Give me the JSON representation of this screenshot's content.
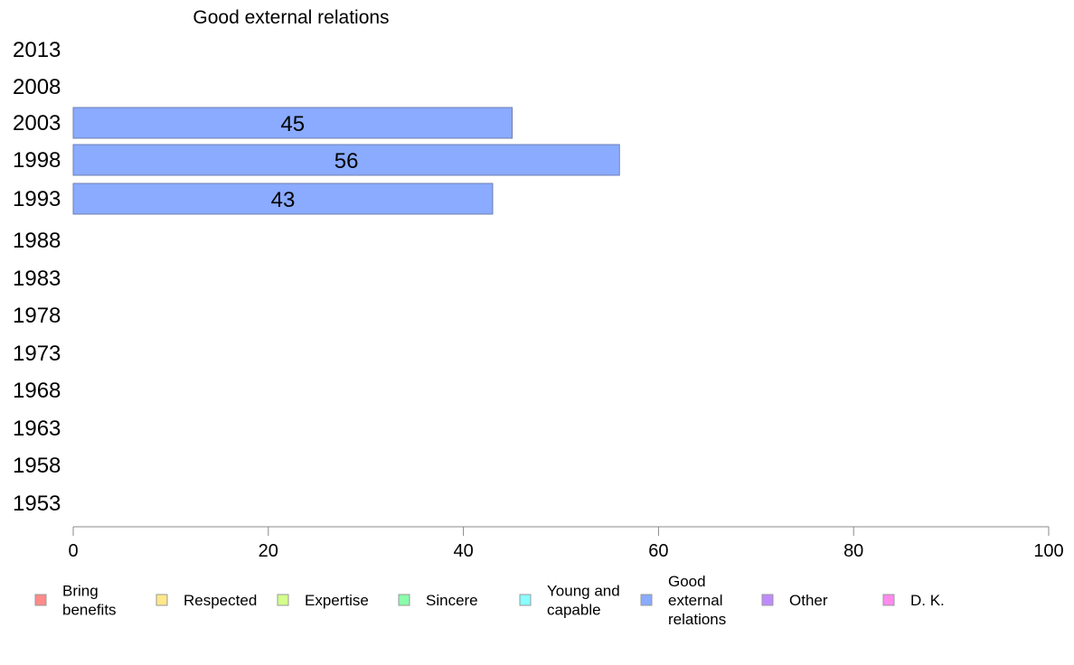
{
  "chart_data": {
    "type": "bar",
    "orientation": "horizontal",
    "title": "Good external relations",
    "xlabel": "",
    "ylabel": "",
    "categories": [
      "2013",
      "2008",
      "2003",
      "1998",
      "1993",
      "1988",
      "1983",
      "1978",
      "1973",
      "1968",
      "1963",
      "1958",
      "1953"
    ],
    "series": [
      {
        "name": "Good external relations",
        "color": "#8aabff",
        "values": [
          null,
          null,
          45,
          56,
          43,
          null,
          null,
          null,
          null,
          null,
          null,
          null,
          null
        ]
      }
    ],
    "xlim": [
      0,
      100
    ],
    "xticks": [
      0,
      20,
      40,
      60,
      80,
      100
    ],
    "grid": false,
    "legend_position": "bottom",
    "legend": [
      {
        "label": [
          "Bring",
          "benefits"
        ],
        "color": "#ff8a8a"
      },
      {
        "label": [
          "Respected"
        ],
        "color": "#ffe88a"
      },
      {
        "label": [
          "Expertise"
        ],
        "color": "#d4ff8a"
      },
      {
        "label": [
          "Sincere"
        ],
        "color": "#8affab"
      },
      {
        "label": [
          "Young and",
          "capable"
        ],
        "color": "#8affff"
      },
      {
        "label": [
          "Good",
          "external",
          "relations"
        ],
        "color": "#8aabff"
      },
      {
        "label": [
          "Other"
        ],
        "color": "#c08aff"
      },
      {
        "label": [
          "D. K."
        ],
        "color": "#ff8aee"
      }
    ]
  }
}
